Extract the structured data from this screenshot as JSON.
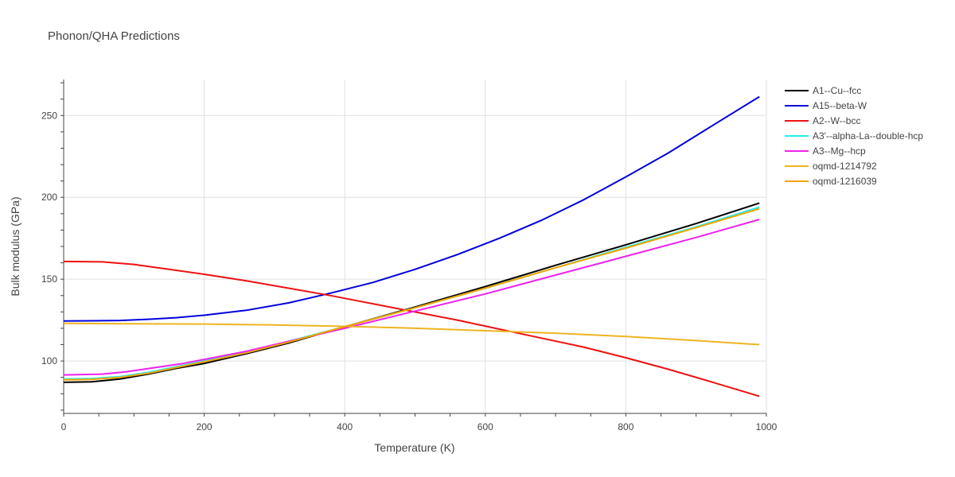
{
  "chart_data": {
    "type": "line",
    "title": "Phonon/QHA Predictions",
    "xlabel": "Temperature (K)",
    "ylabel": "Bulk modulus (GPa)",
    "xlim": [
      0,
      1000
    ],
    "ylim": [
      68,
      272
    ],
    "xticks": [
      0,
      200,
      400,
      600,
      800,
      1000
    ],
    "yticks": [
      100,
      150,
      200,
      250
    ],
    "grid": true,
    "legend_position": "top-right",
    "series": [
      {
        "name": "A1--Cu--fcc",
        "color": "#000000",
        "x": [
          0,
          40,
          80,
          120,
          160,
          200,
          260,
          320,
          400,
          500,
          600,
          700,
          800,
          900,
          990
        ],
        "y": [
          87,
          87.3,
          89,
          92,
          95.5,
          98.5,
          104.5,
          111,
          121,
          133,
          145.5,
          158.5,
          171,
          184,
          196.5
        ]
      },
      {
        "name": "A15--beta-W",
        "color": "#0000dd",
        "x": [
          0,
          40,
          80,
          120,
          160,
          200,
          260,
          320,
          380,
          440,
          500,
          560,
          620,
          680,
          740,
          800,
          860,
          920,
          990
        ],
        "y": [
          124.5,
          124.6,
          124.8,
          125.5,
          126.5,
          128,
          131,
          135.5,
          141.5,
          148,
          156,
          165,
          175,
          186,
          198.5,
          212.5,
          227,
          243,
          261.5
        ]
      },
      {
        "name": "A2--W--bcc",
        "color": "#ee1111",
        "x": [
          0,
          55,
          100,
          150,
          200,
          260,
          320,
          380,
          440,
          500,
          560,
          620,
          680,
          740,
          800,
          860,
          920,
          990
        ],
        "y": [
          160.8,
          160.6,
          159,
          156,
          153,
          149,
          144.5,
          140,
          135,
          130,
          125,
          119.5,
          114,
          108.5,
          102,
          95,
          87.5,
          78.5
        ]
      },
      {
        "name": "A3'--alpha-La--double-hcp",
        "color": "#22eeee",
        "x": [
          0,
          40,
          80,
          120,
          160,
          200,
          260,
          320,
          400,
          500,
          600,
          700,
          800,
          900,
          990
        ],
        "y": [
          89,
          89.3,
          90.5,
          93,
          96.5,
          100,
          105.5,
          112,
          121,
          132.5,
          144.5,
          157,
          169.5,
          182,
          194
        ]
      },
      {
        "name": "A3--Mg--hcp",
        "color": "#ee22ee",
        "x": [
          0,
          55,
          90,
          130,
          170,
          200,
          260,
          320,
          400,
          500,
          600,
          700,
          800,
          900,
          990
        ],
        "y": [
          91.5,
          92,
          93.5,
          96,
          98.5,
          101,
          106,
          112,
          120,
          130.5,
          141,
          152.5,
          164,
          175.5,
          186.5
        ]
      },
      {
        "name": "oqmd-1214792",
        "color": "#eeb422",
        "x": [
          0,
          100,
          200,
          300,
          400,
          500,
          600,
          700,
          800,
          900,
          990
        ],
        "y": [
          123,
          122.8,
          122.6,
          122,
          121.2,
          120,
          118.5,
          117,
          115,
          112.5,
          110
        ]
      },
      {
        "name": "oqmd-1216039",
        "color": "#f0a500",
        "x": [
          0,
          40,
          80,
          120,
          160,
          200,
          260,
          320,
          400,
          500,
          600,
          700,
          800,
          900,
          990
        ],
        "y": [
          88.5,
          88.8,
          90,
          92.5,
          96,
          99.5,
          105,
          111.5,
          121,
          132.5,
          144.5,
          157,
          169,
          181.5,
          193
        ]
      }
    ]
  }
}
